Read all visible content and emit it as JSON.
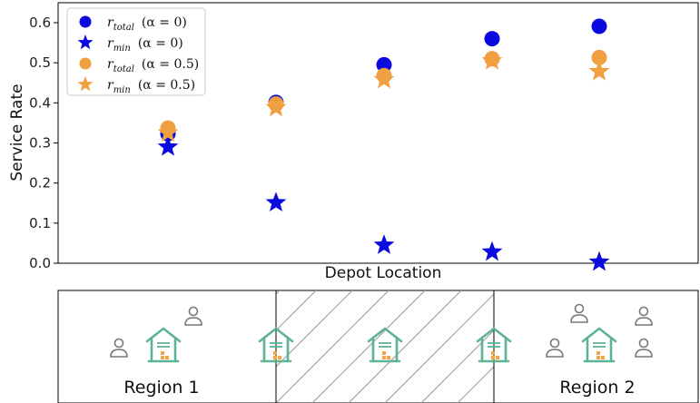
{
  "chart_data": {
    "type": "scatter",
    "xlabel": "Depot Location",
    "ylabel": "Service Rate",
    "ylim": [
      0.0,
      0.65
    ],
    "y_ticks": [
      "0.0",
      "0.1",
      "0.2",
      "0.3",
      "0.4",
      "0.5",
      "0.6"
    ],
    "x": [
      1,
      2,
      3,
      4,
      5
    ],
    "grid": false,
    "legend_position": "top-left",
    "series": [
      {
        "name": "r_total (α = 0)",
        "sub": "total",
        "alpha_text": "(α = 0)",
        "marker": "circle",
        "color": "#0a0ae0",
        "values": [
          0.323,
          0.401,
          0.495,
          0.56,
          0.591
        ]
      },
      {
        "name": "r_min (α = 0)",
        "sub": "min",
        "alpha_text": "(α = 0)",
        "marker": "star",
        "color": "#0a0ae0",
        "values": [
          0.29,
          0.151,
          0.045,
          0.028,
          0.003
        ]
      },
      {
        "name": "r_total (α = 0.5)",
        "sub": "total",
        "alpha_text": "(α = 0.5)",
        "marker": "circle",
        "color": "#f0a040",
        "values": [
          0.337,
          0.397,
          0.468,
          0.51,
          0.513
        ]
      },
      {
        "name": "r_min (α = 0.5)",
        "sub": "min",
        "alpha_text": "(α = 0.5)",
        "marker": "star",
        "color": "#f0a040",
        "values": [
          0.325,
          0.388,
          0.458,
          0.505,
          0.478
        ]
      }
    ]
  },
  "diagram": {
    "region_labels": [
      "Region 1",
      "Region 2"
    ],
    "icons": {
      "depot": "warehouse-icon",
      "customer": "person-icon"
    },
    "depot_color": "#5db394",
    "customer_color": "#777777",
    "hatch_color": "#aaaaaa"
  }
}
